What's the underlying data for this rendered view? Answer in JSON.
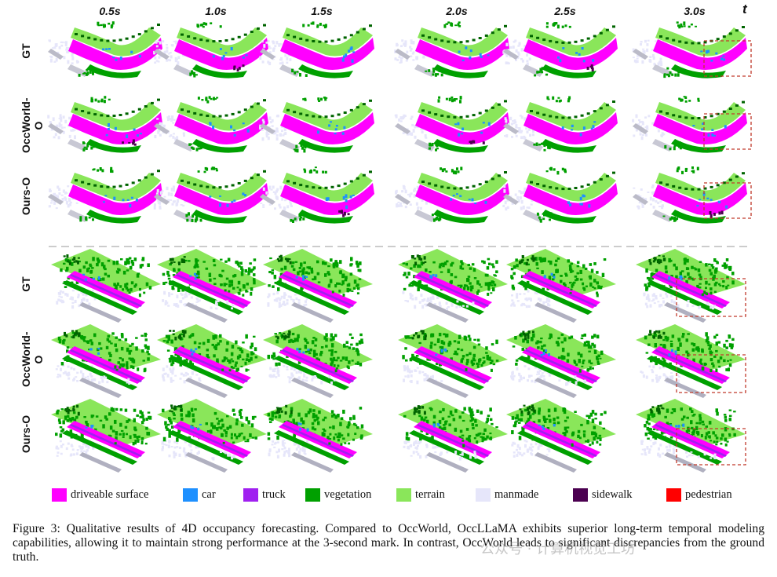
{
  "figure": {
    "time_labels": [
      "0.5s",
      "1.0s",
      "1.5s",
      "2.0s",
      "2.5s",
      "3.0s"
    ],
    "time_axis_label": "t",
    "groups": [
      {
        "scene": "curved-road",
        "rows": [
          "GT",
          "OccWorld-O",
          "Ours-O"
        ]
      },
      {
        "scene": "straight-road",
        "rows": [
          "GT",
          "OccWorld-O",
          "Ours-O"
        ]
      }
    ],
    "legend": [
      {
        "label": "driveable surface",
        "color": "#ff00ff"
      },
      {
        "label": "car",
        "color": "#1e90ff"
      },
      {
        "label": "truck",
        "color": "#a020f0"
      },
      {
        "label": "vegetation",
        "color": "#00a000"
      },
      {
        "label": "terrain",
        "color": "#8ae65a"
      },
      {
        "label": "manmade",
        "color": "#e6e6fa"
      },
      {
        "label": "sidewalk",
        "color": "#4b0050"
      },
      {
        "label": "pedestrian",
        "color": "#ff0000"
      }
    ],
    "highlight_color": "#c0392b"
  },
  "caption": {
    "text": "Figure 3: Qualitative results of 4D occupancy forecasting. Compared to OccWorld, OccLLaMA exhibits superior long-term temporal modeling capabilities, allowing it to maintain strong performance at the 3-second mark. In contrast, OccWorld leads to significant discrepancies from the ground truth."
  },
  "watermark": {
    "text": "公众号 · 计算机视觉工坊"
  }
}
